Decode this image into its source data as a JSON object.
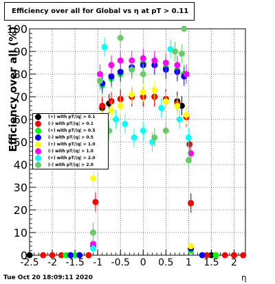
{
  "title": "Efficiency over all for Global vs  η at pT > 0.11",
  "timestamp": "Tue Oct 20 18:09:11 2020",
  "chart_data": {
    "type": "scatter",
    "xlabel": "η",
    "ylabel": "Efficiency over all (%)",
    "xlim": [
      -2.5,
      2.25
    ],
    "ylim": [
      0,
      100
    ],
    "xticks": [
      "-2.5",
      "-2",
      "-1.5",
      "-1",
      "-0.5",
      "0",
      "0.5",
      "1",
      "1.5",
      "2"
    ],
    "yticks": [
      "0",
      "10",
      "20",
      "30",
      "40",
      "50",
      "60",
      "70",
      "80",
      "90",
      "100"
    ],
    "grid": true,
    "legend_position": "left-middle",
    "series": [
      {
        "name": "(+) with pT/|q| > 0.1",
        "color": "#000000",
        "x": [
          -2.5,
          -0.9,
          -0.75,
          -0.5,
          -0.25,
          0.0,
          0.25,
          0.5,
          0.75,
          0.85,
          1.05,
          1.5,
          2.0
        ],
        "y": [
          0,
          65,
          67,
          69,
          70,
          70,
          70,
          69,
          68,
          66,
          23,
          0,
          0
        ]
      },
      {
        "name": "(-) with pT/|q| > 0.1",
        "color": "#ff0000",
        "x": [
          -2.2,
          -2.0,
          -1.8,
          -1.6,
          -1.4,
          -1.2,
          -1.05,
          -0.9,
          -0.7,
          -0.5,
          -0.25,
          0.0,
          0.25,
          0.5,
          0.75,
          0.95,
          1.02,
          1.05,
          1.4,
          1.6,
          1.8,
          2.0,
          2.2
        ],
        "y": [
          0,
          0,
          0,
          0,
          0,
          0,
          23.5,
          66,
          68,
          69,
          70,
          70,
          70,
          69,
          67,
          61,
          49,
          23,
          0,
          0,
          0,
          0,
          0
        ]
      },
      {
        "name": "(+) with pT/|q| > 0.5",
        "color": "#00ff00",
        "x": [
          -1.7,
          -1.5,
          -1.1,
          -0.9,
          -0.7,
          -0.5,
          -0.25,
          0.0,
          0.25,
          0.5,
          0.75,
          0.9,
          1.05,
          1.3,
          1.6
        ],
        "y": [
          0,
          0,
          10,
          75,
          78,
          80,
          82,
          85,
          84,
          83,
          82,
          80,
          2,
          0,
          0
        ]
      },
      {
        "name": "(-) with pT/|q| > 0.5",
        "color": "#0000ff",
        "x": [
          -1.6,
          -1.4,
          -1.1,
          -0.9,
          -0.7,
          -0.5,
          -0.25,
          0.0,
          0.25,
          0.5,
          0.75,
          0.9,
          1.05,
          1.3
        ],
        "y": [
          0,
          0,
          4,
          76,
          79,
          81,
          83,
          84,
          84,
          82,
          81,
          79,
          3,
          0
        ]
      },
      {
        "name": "(+) with pT/|q| > 1.0",
        "color": "#ffff00",
        "x": [
          -1.1,
          -0.9,
          -0.7,
          -0.5,
          -0.25,
          0.0,
          0.25,
          0.5,
          0.75,
          0.95,
          1.05
        ],
        "y": [
          34,
          60,
          64,
          66,
          71,
          72,
          73,
          68,
          66,
          62,
          4
        ]
      },
      {
        "name": "(-) with pT/|q| > 1.0",
        "color": "#ff00ff",
        "x": [
          -1.1,
          -0.95,
          -0.7,
          -0.5,
          -0.25,
          0.0,
          0.25,
          0.5,
          0.75,
          0.95,
          1.05
        ],
        "y": [
          5,
          80,
          84,
          86,
          86,
          87,
          86,
          85,
          84,
          80,
          45
        ]
      },
      {
        "name": "(+) with pT/|q| > 2.0",
        "color": "#00ffff",
        "x": [
          -1.1,
          -0.85,
          -0.6,
          -0.4,
          -0.2,
          0.0,
          0.2,
          0.4,
          0.6,
          0.8,
          1.0
        ],
        "y": [
          3,
          92,
          60,
          58,
          52,
          55,
          50,
          65,
          91,
          60,
          52
        ]
      },
      {
        "name": "(-) with pT/|q| > 2.0",
        "color": "#66cc66",
        "x": [
          -1.1,
          -0.95,
          -0.75,
          -0.5,
          -0.25,
          0.0,
          0.25,
          0.5,
          0.7,
          0.85,
          0.9,
          1.0
        ],
        "y": [
          10,
          77,
          55,
          96,
          82,
          80,
          52,
          55,
          90,
          89,
          100,
          42
        ]
      }
    ]
  }
}
